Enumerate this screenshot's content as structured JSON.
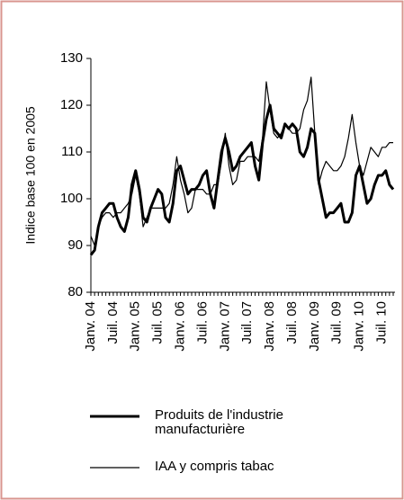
{
  "chart_data": {
    "type": "line",
    "ylabel": "Indice base 100 en 2005",
    "categories": [
      "Janv. 04",
      null,
      null,
      null,
      null,
      null,
      "Juil. 04",
      null,
      null,
      null,
      null,
      null,
      "Janv. 05",
      null,
      null,
      null,
      null,
      null,
      "Juil. 05",
      null,
      null,
      null,
      null,
      null,
      "Janv. 06",
      null,
      null,
      null,
      null,
      null,
      "Juil. 06",
      null,
      null,
      null,
      null,
      null,
      "Janv. 07",
      null,
      null,
      null,
      null,
      null,
      "Juil. 07",
      null,
      null,
      null,
      null,
      null,
      "Janv. 08",
      null,
      null,
      null,
      null,
      null,
      "Juil. 08",
      null,
      null,
      null,
      null,
      null,
      "Janv. 09",
      null,
      null,
      null,
      null,
      null,
      "Juil. 09",
      null,
      null,
      null,
      null,
      null,
      "Janv. 10",
      null,
      null,
      null,
      null,
      null,
      "Juil. 10",
      null,
      null,
      null
    ],
    "series": [
      {
        "name": "Produits de l'industrie manufacturière",
        "color": "#000000",
        "width": 3,
        "values": [
          88,
          89,
          94,
          97,
          98,
          99,
          99,
          96,
          94,
          93,
          96,
          103,
          106,
          102,
          96,
          95,
          98,
          100,
          102,
          101,
          96,
          95,
          99,
          106,
          107,
          104,
          101,
          102,
          102,
          103,
          105,
          106,
          101,
          98,
          104,
          110,
          113,
          110,
          106,
          107,
          109,
          110,
          111,
          112,
          107,
          104,
          112,
          117,
          120,
          115,
          114,
          113,
          116,
          115,
          116,
          115,
          110,
          109,
          111,
          115,
          114,
          104,
          100,
          96,
          97,
          97,
          98,
          99,
          95,
          95,
          97,
          105,
          107,
          103,
          99,
          100,
          103,
          105,
          105,
          106,
          103,
          102
        ]
      },
      {
        "name": "IAA y compris tabac",
        "color": "#000000",
        "width": 1.2,
        "values": [
          92,
          90,
          94,
          96,
          97,
          97,
          96,
          97,
          97,
          98,
          99,
          101,
          105,
          101,
          94,
          96,
          98,
          98,
          98,
          98,
          98,
          99,
          103,
          109,
          104,
          101,
          97,
          98,
          102,
          102,
          102,
          101,
          101,
          103,
          103,
          108,
          114,
          107,
          103,
          104,
          108,
          108,
          109,
          109,
          109,
          108,
          113,
          125,
          119,
          114,
          113,
          114,
          116,
          115,
          114,
          114,
          115,
          119,
          121,
          126,
          114,
          103,
          106,
          108,
          107,
          106,
          106,
          107,
          109,
          113,
          118,
          112,
          107,
          105,
          108,
          111,
          110,
          109,
          111,
          111,
          112,
          112
        ]
      }
    ],
    "ylim": [
      80,
      130
    ],
    "yticks": [
      80,
      90,
      100,
      110,
      120,
      130
    ],
    "grid": false
  }
}
